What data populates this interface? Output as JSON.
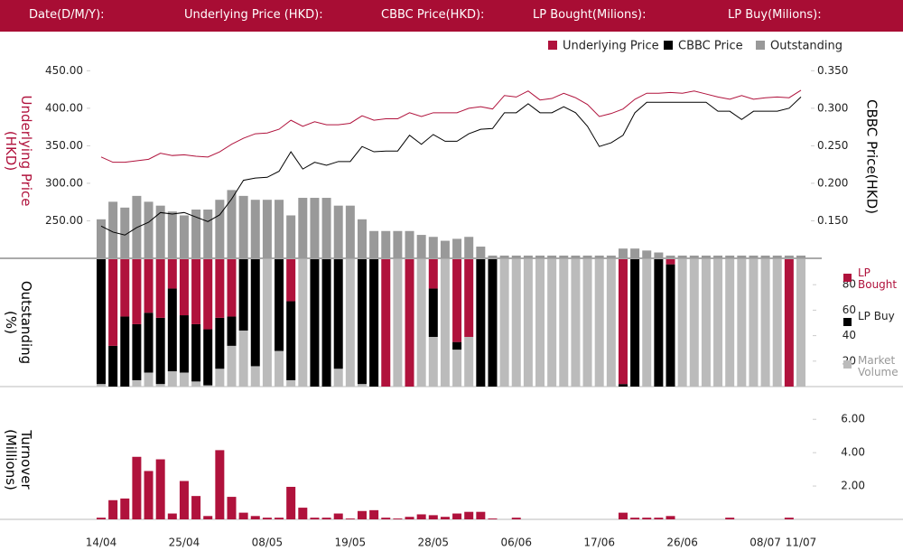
{
  "header": {
    "labels": [
      "Date(D/M/Y):",
      "Underlying Price (HKD):",
      "CBBC Price(HKD):",
      "LP Bought(Milions):",
      "LP Buy(Milions):"
    ]
  },
  "chart_data": [
    {
      "type": "line",
      "ylabel": "Underlying Price (HKD)",
      "y2label": "CBBC Price(HKD)",
      "ylim": [
        200,
        460
      ],
      "yticks": [
        {
          "value": 450,
          "label": "450.00"
        },
        {
          "value": 400,
          "label": "400.00"
        },
        {
          "value": 350,
          "label": "350.00"
        },
        {
          "value": 300,
          "label": "300.00"
        },
        {
          "value": 250,
          "label": "250.00"
        }
      ],
      "y2lim": [
        0.1,
        0.36
      ],
      "y2ticks": [
        {
          "value": 0.35,
          "label": "0.350"
        },
        {
          "value": 0.3,
          "label": "0.300"
        },
        {
          "value": 0.25,
          "label": "0.250"
        },
        {
          "value": 0.2,
          "label": "0.200"
        },
        {
          "value": 0.15,
          "label": "0.150"
        }
      ],
      "y3lim": [
        0,
        100
      ],
      "series": [
        {
          "name": "Underlying Price",
          "color": "#b0123c",
          "axis": "y",
          "values": [
            335,
            328,
            328,
            330,
            332,
            340,
            337,
            338,
            336,
            335,
            342,
            352,
            360,
            366,
            367,
            372,
            384,
            376,
            382,
            378,
            378,
            380,
            390,
            384,
            386,
            386,
            394,
            389,
            394,
            394,
            394,
            400,
            402,
            399,
            417,
            415,
            423,
            411,
            413,
            420,
            414,
            405,
            389,
            393,
            399,
            412,
            420,
            420,
            421,
            420,
            423,
            419,
            415,
            412,
            417,
            412,
            414,
            415,
            414,
            424
          ]
        },
        {
          "name": "CBBC Price",
          "color": "#000000",
          "axis": "y2",
          "values": [
            0.143,
            0.135,
            0.131,
            0.141,
            0.148,
            0.161,
            0.159,
            0.161,
            0.155,
            0.149,
            0.158,
            0.179,
            0.204,
            0.207,
            0.208,
            0.216,
            0.242,
            0.219,
            0.228,
            0.224,
            0.229,
            0.229,
            0.249,
            0.242,
            0.243,
            0.243,
            0.264,
            0.252,
            0.265,
            0.256,
            0.256,
            0.266,
            0.272,
            0.273,
            0.294,
            0.294,
            0.306,
            0.294,
            0.294,
            0.302,
            0.294,
            0.276,
            0.249,
            0.254,
            0.264,
            0.294,
            0.308,
            0.308,
            0.308,
            0.308,
            0.308,
            0.308,
            0.296,
            0.296,
            0.285,
            0.296,
            0.296,
            0.296,
            0.3,
            0.315
          ]
        },
        {
          "name": "Outstanding",
          "color": "#999999",
          "axis": "y3",
          "kind": "bar",
          "values": [
            20,
            29,
            26,
            32,
            29,
            27,
            24,
            22,
            25,
            25,
            30,
            35,
            32,
            30,
            30,
            30,
            22,
            31,
            31,
            31,
            27,
            27,
            20,
            14,
            14,
            14,
            14,
            12,
            11,
            9,
            10,
            11,
            6,
            1.4,
            1.4,
            1.4,
            1.4,
            1.4,
            1.4,
            1.4,
            1.4,
            1.4,
            1.4,
            1.4,
            5,
            5,
            4,
            3,
            1.4,
            1.4,
            1.4,
            1.4,
            1.4,
            1.4,
            1.4,
            1.4,
            1.4,
            1.4,
            1.4,
            1.4
          ]
        }
      ]
    },
    {
      "type": "stacked_bar",
      "ylabel": "Outstanding (%)",
      "ylim": [
        0,
        100
      ],
      "yticks": [
        80,
        60,
        40,
        20
      ],
      "series": [
        {
          "name": "LP Bought",
          "color": "#b0123c",
          "values": [
            0,
            68,
            45,
            51,
            42,
            46,
            23,
            44,
            51,
            55,
            46,
            45,
            0,
            0,
            0,
            0,
            33,
            0,
            0,
            0,
            0,
            0,
            0,
            0,
            100,
            0,
            100,
            0,
            23,
            0,
            65,
            61,
            0,
            0,
            0,
            0,
            0,
            0,
            0,
            0,
            0,
            0,
            0,
            0,
            98,
            0,
            0,
            0,
            4,
            0,
            0,
            0,
            0,
            0,
            0,
            0,
            0,
            0,
            100,
            0
          ]
        },
        {
          "name": "LP Buy",
          "color": "#000000",
          "values": [
            98,
            32,
            55,
            44,
            47,
            52,
            65,
            45,
            45,
            44,
            40,
            23,
            56,
            84,
            0,
            72,
            62,
            0,
            100,
            100,
            86,
            0,
            98,
            100,
            0,
            0,
            0,
            0,
            38,
            0,
            6,
            0,
            100,
            100,
            0,
            0,
            0,
            0,
            0,
            0,
            0,
            0,
            0,
            0,
            2,
            100,
            0,
            100,
            96,
            0,
            0,
            0,
            0,
            0,
            0,
            0,
            0,
            0,
            0,
            0
          ]
        },
        {
          "name": "Market Volume",
          "color": "#bbbbbb",
          "values": [
            2,
            0,
            0,
            5,
            11,
            2,
            12,
            11,
            4,
            1,
            14,
            32,
            44,
            16,
            100,
            28,
            5,
            100,
            0,
            0,
            14,
            100,
            2,
            0,
            0,
            100,
            0,
            100,
            39,
            100,
            29,
            39,
            0,
            0,
            100,
            100,
            100,
            100,
            100,
            100,
            100,
            100,
            100,
            100,
            0,
            0,
            100,
            0,
            0,
            100,
            100,
            100,
            100,
            100,
            100,
            100,
            100,
            100,
            0,
            100
          ]
        }
      ]
    },
    {
      "type": "bar",
      "ylabel": "Turnover (Millions)",
      "color": "#b0123c",
      "ylim": [
        0,
        6.5
      ],
      "yticks": [
        {
          "value": 6,
          "label": "6.00"
        },
        {
          "value": 4,
          "label": "4.00"
        },
        {
          "value": 2,
          "label": "2.00"
        }
      ],
      "categories": [
        "14/04",
        null,
        null,
        null,
        null,
        null,
        null,
        "25/04",
        null,
        null,
        null,
        null,
        null,
        null,
        "08/05",
        null,
        null,
        null,
        null,
        null,
        null,
        "19/05",
        null,
        null,
        null,
        null,
        null,
        null,
        "28/05",
        null,
        null,
        null,
        null,
        null,
        null,
        "06/06",
        null,
        null,
        null,
        null,
        null,
        null,
        "17/06",
        null,
        null,
        null,
        null,
        null,
        null,
        "26/06",
        null,
        null,
        null,
        null,
        null,
        null,
        "08/07",
        null,
        null,
        "11/07"
      ],
      "values": [
        0.1,
        1.15,
        1.25,
        3.75,
        2.9,
        3.6,
        0.35,
        2.3,
        1.4,
        0.2,
        4.15,
        1.35,
        0.4,
        0.2,
        0.1,
        0.1,
        1.95,
        0.7,
        0.1,
        0.1,
        0.35,
        0.05,
        0.5,
        0.55,
        0.1,
        0.05,
        0.15,
        0.3,
        0.25,
        0.15,
        0.35,
        0.45,
        0.45,
        0.05,
        0,
        0.1,
        0,
        0,
        0,
        0,
        0,
        0,
        0,
        0,
        0.4,
        0.1,
        0.1,
        0.1,
        0.2,
        0,
        0,
        0,
        0,
        0.1,
        0,
        0,
        0,
        0,
        0.1,
        0
      ]
    }
  ]
}
